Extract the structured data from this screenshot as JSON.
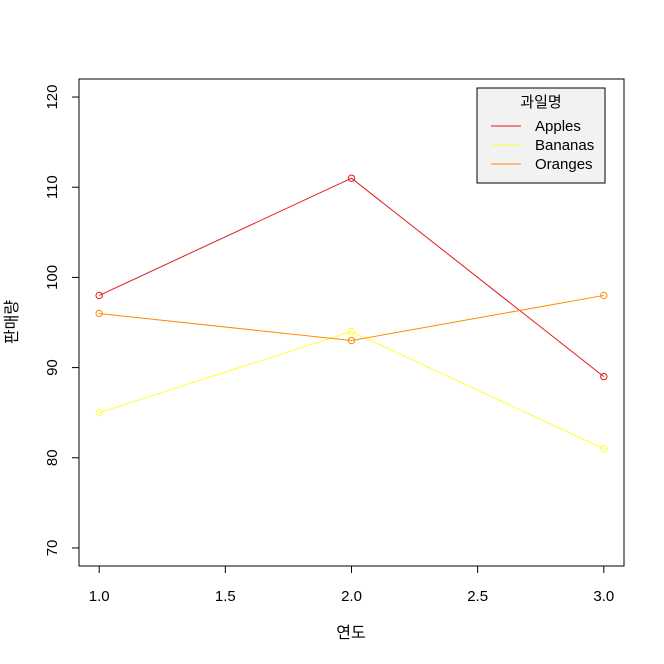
{
  "chart_data": {
    "type": "line",
    "xlabel": "연도",
    "ylabel": "판매량",
    "x": [
      1.0,
      2.0,
      3.0
    ],
    "xlim": [
      0.92,
      3.08
    ],
    "ylim": [
      68,
      122
    ],
    "x_ticks": [
      "1.0",
      "1.5",
      "2.0",
      "2.5",
      "3.0"
    ],
    "y_ticks": [
      "70",
      "80",
      "90",
      "100",
      "110",
      "120"
    ],
    "grid": false,
    "legend": {
      "title": "과일명",
      "position": "top-right"
    },
    "series": [
      {
        "name": "Apples",
        "color": "#e41a1c",
        "values": [
          98,
          111,
          89
        ]
      },
      {
        "name": "Bananas",
        "color": "#ffff33",
        "values": [
          85,
          94,
          81
        ]
      },
      {
        "name": "Oranges",
        "color": "#ff8c00",
        "values": [
          96,
          93,
          98
        ]
      }
    ]
  }
}
